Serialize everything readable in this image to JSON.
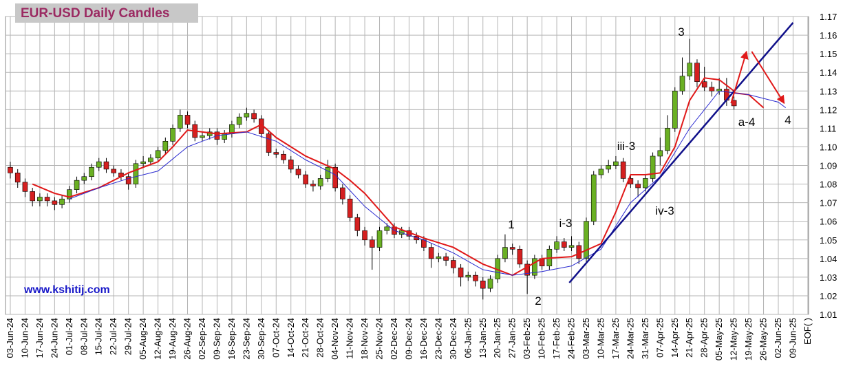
{
  "chart_data": {
    "type": "candlestick",
    "title": "EUR-USD Daily  Candles",
    "watermark": "www.kshitij.com",
    "up_color": "#6ab023",
    "down_color": "#d42020",
    "open": [
      1.089,
      1.086,
      1.081,
      1.076,
      1.071,
      1.073,
      1.071,
      1.069,
      1.072,
      1.077,
      1.082,
      1.084,
      1.089,
      1.092,
      1.088,
      1.086,
      1.084,
      1.08,
      1.091,
      1.092,
      1.094,
      1.098,
      1.103,
      1.11,
      1.117,
      1.112,
      1.105,
      1.106,
      1.108,
      1.104,
      1.107,
      1.112,
      1.116,
      1.118,
      1.115,
      1.107,
      1.097,
      1.096,
      1.093,
      1.088,
      1.085,
      1.08,
      1.079,
      1.083,
      1.089,
      1.078,
      1.072,
      1.062,
      1.055,
      1.05,
      1.046,
      1.055,
      1.057,
      1.053,
      1.055,
      1.052,
      1.05,
      1.046,
      1.04,
      1.041,
      1.039,
      1.035,
      1.03,
      1.031,
      1.028,
      1.024,
      1.029,
      1.04,
      1.046,
      1.045,
      1.037,
      1.031,
      1.04,
      1.036,
      1.045,
      1.049,
      1.046,
      1.047,
      1.04,
      1.06,
      1.085,
      1.088,
      1.09,
      1.092,
      1.083,
      1.08,
      1.078,
      1.083,
      1.095,
      1.098,
      1.11,
      1.13,
      1.138,
      1.145,
      1.135,
      1.132,
      1.13,
      1.131,
      1.125
    ],
    "high": [
      1.092,
      1.088,
      1.083,
      1.078,
      1.075,
      1.075,
      1.073,
      1.074,
      1.079,
      1.084,
      1.086,
      1.091,
      1.094,
      1.094,
      1.09,
      1.088,
      1.086,
      1.093,
      1.095,
      1.096,
      1.1,
      1.105,
      1.112,
      1.12,
      1.119,
      1.114,
      1.108,
      1.11,
      1.11,
      1.109,
      1.114,
      1.118,
      1.121,
      1.12,
      1.117,
      1.109,
      1.099,
      1.098,
      1.095,
      1.09,
      1.087,
      1.082,
      1.085,
      1.093,
      1.091,
      1.08,
      1.074,
      1.064,
      1.057,
      1.052,
      1.057,
      1.059,
      1.059,
      1.057,
      1.057,
      1.054,
      1.052,
      1.048,
      1.043,
      1.043,
      1.041,
      1.037,
      1.033,
      1.033,
      1.03,
      1.031,
      1.042,
      1.053,
      1.048,
      1.047,
      1.039,
      1.042,
      1.042,
      1.047,
      1.052,
      1.051,
      1.052,
      1.049,
      1.062,
      1.087,
      1.09,
      1.093,
      1.095,
      1.094,
      1.085,
      1.082,
      1.085,
      1.097,
      1.105,
      1.117,
      1.132,
      1.148,
      1.158,
      1.147,
      1.143,
      1.135,
      1.137,
      1.137,
      1.127
    ],
    "low": [
      1.083,
      1.078,
      1.073,
      1.068,
      1.068,
      1.068,
      1.066,
      1.067,
      1.07,
      1.075,
      1.08,
      1.082,
      1.087,
      1.086,
      1.084,
      1.082,
      1.077,
      1.078,
      1.089,
      1.09,
      1.092,
      1.096,
      1.101,
      1.108,
      1.11,
      1.103,
      1.103,
      1.104,
      1.101,
      1.102,
      1.105,
      1.11,
      1.114,
      1.113,
      1.105,
      1.095,
      1.094,
      1.091,
      1.086,
      1.083,
      1.078,
      1.076,
      1.077,
      1.081,
      1.076,
      1.069,
      1.06,
      1.052,
      1.047,
      1.034,
      1.044,
      1.053,
      1.051,
      1.051,
      1.05,
      1.048,
      1.044,
      1.035,
      1.038,
      1.036,
      1.032,
      1.025,
      1.028,
      1.025,
      1.018,
      1.022,
      1.027,
      1.038,
      1.042,
      1.035,
      1.021,
      1.029,
      1.034,
      1.034,
      1.043,
      1.044,
      1.044,
      1.037,
      1.038,
      1.058,
      1.083,
      1.086,
      1.088,
      1.081,
      1.078,
      1.073,
      1.076,
      1.081,
      1.09,
      1.096,
      1.108,
      1.128,
      1.136,
      1.132,
      1.13,
      1.127,
      1.128,
      1.122,
      1.12
    ],
    "close": [
      1.086,
      1.081,
      1.076,
      1.071,
      1.073,
      1.071,
      1.069,
      1.072,
      1.077,
      1.082,
      1.084,
      1.089,
      1.092,
      1.088,
      1.086,
      1.084,
      1.08,
      1.091,
      1.092,
      1.094,
      1.098,
      1.103,
      1.11,
      1.117,
      1.112,
      1.105,
      1.106,
      1.108,
      1.104,
      1.107,
      1.112,
      1.116,
      1.118,
      1.115,
      1.107,
      1.097,
      1.096,
      1.093,
      1.088,
      1.085,
      1.08,
      1.079,
      1.083,
      1.089,
      1.078,
      1.072,
      1.062,
      1.055,
      1.05,
      1.046,
      1.055,
      1.057,
      1.053,
      1.055,
      1.052,
      1.05,
      1.046,
      1.04,
      1.041,
      1.039,
      1.035,
      1.03,
      1.031,
      1.028,
      1.024,
      1.029,
      1.04,
      1.046,
      1.045,
      1.037,
      1.031,
      1.04,
      1.036,
      1.045,
      1.049,
      1.046,
      1.047,
      1.04,
      1.06,
      1.085,
      1.088,
      1.09,
      1.092,
      1.083,
      1.08,
      1.078,
      1.083,
      1.095,
      1.098,
      1.11,
      1.13,
      1.138,
      1.145,
      1.135,
      1.132,
      1.13,
      1.131,
      1.125,
      1.122
    ],
    "lines": [
      {
        "color": "#e01818",
        "width": 2,
        "x": [
          3,
          6,
          8,
          12,
          16,
          20,
          22,
          24,
          28,
          32,
          34,
          36,
          40,
          44,
          46,
          48,
          52,
          56,
          60,
          64,
          68,
          72,
          76,
          80,
          82,
          84,
          86,
          88,
          90,
          92,
          94,
          96,
          98
        ],
        "values": [
          1.08,
          1.075,
          1.073,
          1.078,
          1.086,
          1.092,
          1.1,
          1.109,
          1.107,
          1.108,
          1.112,
          1.105,
          1.095,
          1.088,
          1.082,
          1.075,
          1.057,
          1.051,
          1.046,
          1.037,
          1.031,
          1.04,
          1.041,
          1.048,
          1.065,
          1.085,
          1.085,
          1.086,
          1.1,
          1.125,
          1.137,
          1.136,
          1.13
        ]
      },
      {
        "color": "#e01818",
        "width": 2,
        "x": [
          98,
          100,
          102
        ],
        "values": [
          1.129,
          1.128,
          1.121
        ]
      },
      {
        "color": "#2a2ad0",
        "width": 1,
        "x": [
          8,
          12,
          16,
          20,
          24,
          28,
          32,
          36,
          40,
          44,
          48,
          52,
          56,
          60,
          64,
          68,
          72,
          76,
          80,
          84,
          88,
          92,
          96,
          100,
          104,
          105
        ],
        "values": [
          1.072,
          1.078,
          1.083,
          1.087,
          1.1,
          1.106,
          1.108,
          1.103,
          1.093,
          1.085,
          1.068,
          1.055,
          1.05,
          1.043,
          1.034,
          1.031,
          1.033,
          1.036,
          1.045,
          1.07,
          1.084,
          1.11,
          1.13,
          1.128,
          1.124,
          1.121
        ]
      },
      {
        "color": "#10108a",
        "width": 2.5,
        "x": [
          75.7,
          106
        ],
        "values": [
          1.027,
          1.1667
        ]
      },
      {
        "color": "#e01818",
        "width": 2,
        "arrow": true,
        "x": [
          97.6,
          99.7
        ],
        "values": [
          1.1234,
          1.1512
        ]
      },
      {
        "color": "#e01818",
        "width": 2,
        "arrow": true,
        "x": [
          100.4,
          104.8
        ],
        "values": [
          1.1512,
          1.1234
        ]
      }
    ],
    "annotations": [
      "3",
      "iii-3",
      "iv-3",
      "1",
      "i-3",
      "2",
      "a-4",
      "4"
    ],
    "xlim": [
      -0.65,
      108.1
    ],
    "ylim": [
      1.01,
      1.17
    ],
    "xticks": [
      {
        "value": 0,
        "label": "03-Jun-24"
      },
      {
        "value": 2,
        "label": "10-Jun-24"
      },
      {
        "value": 4,
        "label": "17-Jun-24"
      },
      {
        "value": 6,
        "label": "24-Jun-24"
      },
      {
        "value": 8,
        "label": "01-Jul-24"
      },
      {
        "value": 10,
        "label": "08-Jul-24"
      },
      {
        "value": 12,
        "label": "15-Jul-24"
      },
      {
        "value": 14,
        "label": "22-Jul-24"
      },
      {
        "value": 16,
        "label": "29-Jul-24"
      },
      {
        "value": 18,
        "label": "05-Aug-24"
      },
      {
        "value": 20,
        "label": "12-Aug-24"
      },
      {
        "value": 22,
        "label": "19-Aug-24"
      },
      {
        "value": 24,
        "label": "26-Aug-24"
      },
      {
        "value": 26,
        "label": "02-Sep-24"
      },
      {
        "value": 28,
        "label": "09-Sep-24"
      },
      {
        "value": 30,
        "label": "16-Sep-24"
      },
      {
        "value": 32,
        "label": "23-Sep-24"
      },
      {
        "value": 34,
        "label": "30-Sep-24"
      },
      {
        "value": 36,
        "label": "07-Oct-24"
      },
      {
        "value": 38,
        "label": "14-Oct-24"
      },
      {
        "value": 40,
        "label": "21-Oct-24"
      },
      {
        "value": 42,
        "label": "28-Oct-24"
      },
      {
        "value": 44,
        "label": "04-Nov-24"
      },
      {
        "value": 46,
        "label": "11-Nov-24"
      },
      {
        "value": 48,
        "label": "18-Nov-24"
      },
      {
        "value": 50,
        "label": "25-Nov-24"
      },
      {
        "value": 52,
        "label": "02-Dec-24"
      },
      {
        "value": 54,
        "label": "09-Dec-24"
      },
      {
        "value": 56,
        "label": "16-Dec-24"
      },
      {
        "value": 58,
        "label": "23-Dec-24"
      },
      {
        "value": 60,
        "label": "30-Dec-24"
      },
      {
        "value": 62,
        "label": "06-Jan-25"
      },
      {
        "value": 64,
        "label": "13-Jan-25"
      },
      {
        "value": 66,
        "label": "20-Jan-25"
      },
      {
        "value": 68,
        "label": "27-Jan-25"
      },
      {
        "value": 70,
        "label": "03-Feb-25"
      },
      {
        "value": 72,
        "label": "10-Feb-25"
      },
      {
        "value": 74,
        "label": "17-Feb-25"
      },
      {
        "value": 76,
        "label": "24-Feb-25"
      },
      {
        "value": 78,
        "label": "03-Mar-25"
      },
      {
        "value": 80,
        "label": "10-Mar-25"
      },
      {
        "value": 82,
        "label": "17-Mar-25"
      },
      {
        "value": 84,
        "label": "24-Mar-25"
      },
      {
        "value": 86,
        "label": "31-Mar-25"
      },
      {
        "value": 88,
        "label": "07-Apr-25"
      },
      {
        "value": 90,
        "label": "14-Apr-25"
      },
      {
        "value": 92,
        "label": "21-Apr-25"
      },
      {
        "value": 94,
        "label": "28-Apr-25"
      },
      {
        "value": 96,
        "label": "05-May-25"
      },
      {
        "value": 98,
        "label": "12-May-25"
      },
      {
        "value": 100,
        "label": "19-May-25"
      },
      {
        "value": 102,
        "label": "26-May-25"
      },
      {
        "value": 104,
        "label": "02-Jun-25"
      },
      {
        "value": 106,
        "label": "09-Jun-25"
      },
      {
        "value": 108,
        "label": "EOF( )"
      }
    ],
    "yticks": [
      1.01,
      1.02,
      1.03,
      1.04,
      1.05,
      1.06,
      1.07,
      1.08,
      1.09,
      {
        "value": 1.1,
        "label": "1.10"
      },
      1.11,
      1.12,
      1.13,
      1.14,
      1.15,
      1.16,
      1.17
    ],
    "grid": true
  }
}
